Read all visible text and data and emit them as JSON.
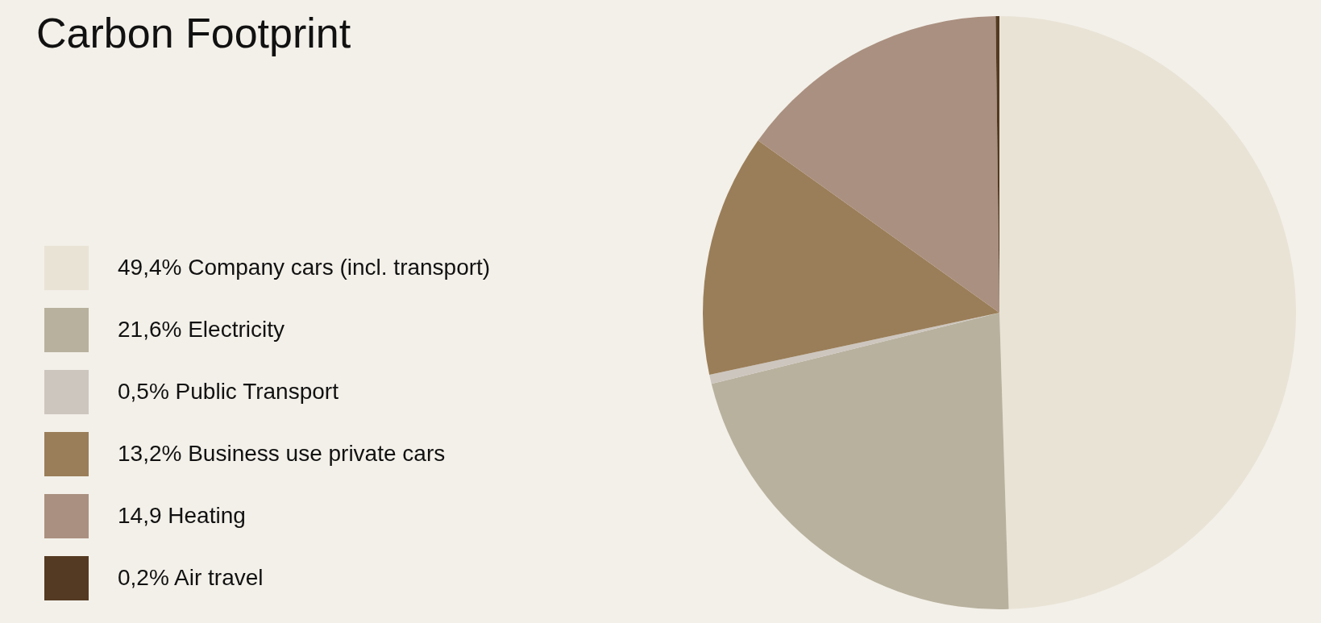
{
  "chart_data": {
    "type": "pie",
    "title": "Carbon Footprint",
    "categories": [
      "49,4% Company cars (incl. transport)",
      "21,6% Electricity",
      "0,5% Public Transport",
      "13,2% Business use private cars",
      "14,9 Heating",
      "0,2% Air travel"
    ],
    "values": [
      49.4,
      21.6,
      0.5,
      13.2,
      14.9,
      0.2
    ],
    "colors": [
      "#e9e3d6",
      "#b8b19e",
      "#cdc6bf",
      "#9a7e59",
      "#aa9080",
      "#543a22"
    ],
    "legend": "left"
  }
}
